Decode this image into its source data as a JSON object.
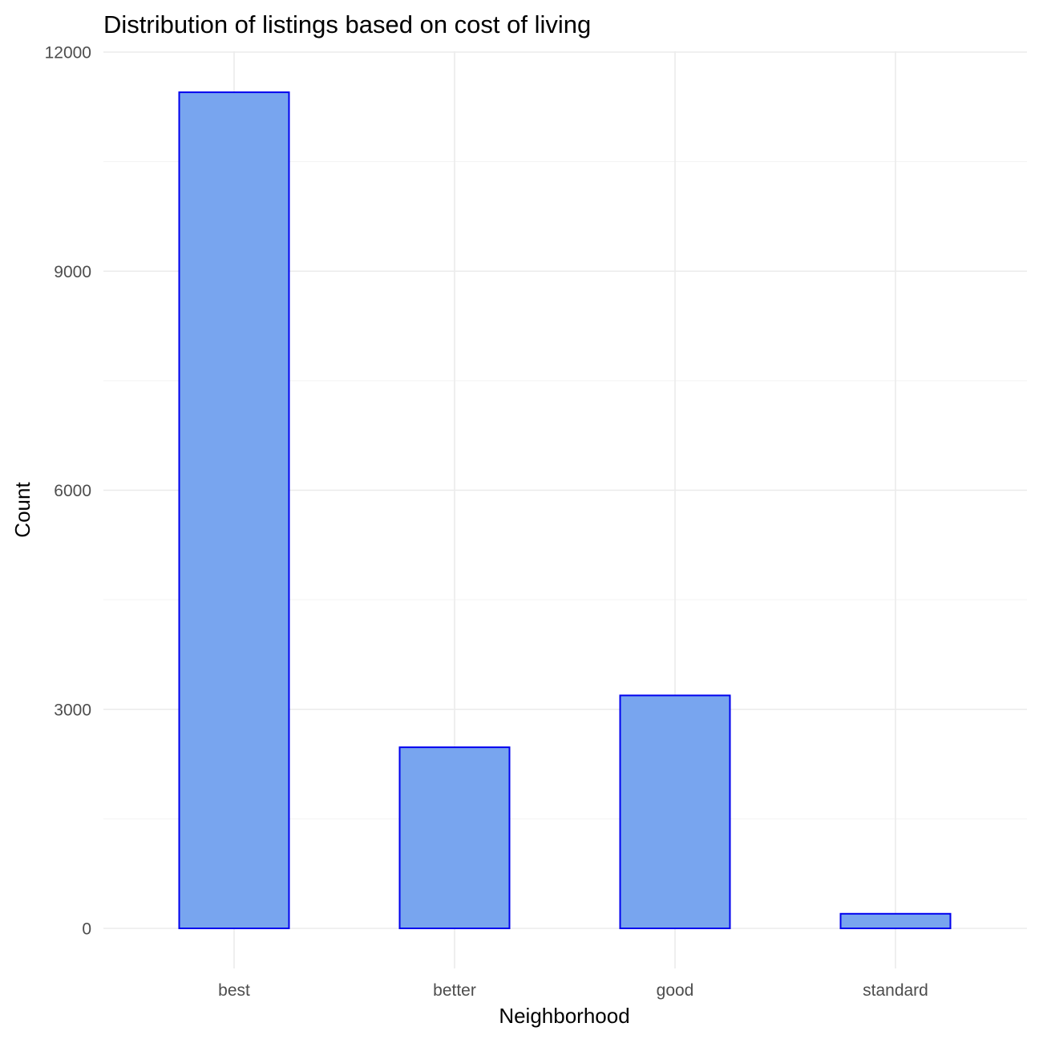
{
  "chart_data": {
    "type": "bar",
    "title": "Distribution of listings based on cost of living",
    "xlabel": "Neighborhood",
    "ylabel": "Count",
    "categories": [
      "best",
      "better",
      "good",
      "standard"
    ],
    "values": [
      11450,
      2480,
      3190,
      200
    ],
    "ylim": [
      0,
      12000
    ],
    "yticks": [
      0,
      3000,
      6000,
      9000,
      12000
    ],
    "ytick_labels": [
      "0",
      "3000",
      "6000",
      "9000",
      "12000"
    ],
    "grid": true,
    "legend": "none",
    "colors": {
      "bar_fill": "#78a5ef",
      "bar_stroke": "#0000ee",
      "grid_major": "#ebebeb",
      "grid_minor": "#f3f3f3",
      "tick_text": "#4d4d4d",
      "title_text": "#000000"
    }
  }
}
